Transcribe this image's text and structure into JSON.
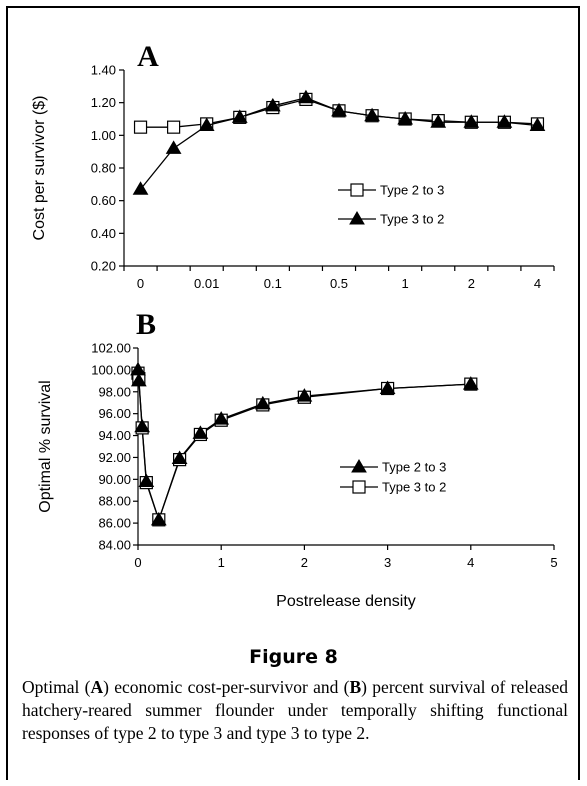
{
  "chart_data": [
    {
      "type": "line",
      "panel_label": "A",
      "ylabel": "Cost per survivor ($)",
      "xlabel": "",
      "ylim": [
        0.2,
        1.4
      ],
      "y_ticks": [
        "0.20",
        "0.40",
        "0.60",
        "0.80",
        "1.00",
        "1.20",
        "1.40"
      ],
      "categories": [
        "0",
        "",
        "0.01",
        "",
        "0.1",
        "",
        "0.5",
        "",
        "1",
        "",
        "2",
        "",
        "4"
      ],
      "series": [
        {
          "name": "Type 2 to 3",
          "marker": "square-open",
          "values": [
            1.05,
            1.05,
            1.07,
            1.11,
            1.17,
            1.22,
            1.15,
            1.12,
            1.1,
            1.09,
            1.08,
            1.08,
            1.07
          ]
        },
        {
          "name": "Type 3 to 2",
          "marker": "triangle-filled",
          "values": [
            0.67,
            0.92,
            1.06,
            1.11,
            1.18,
            1.23,
            1.15,
            1.12,
            1.1,
            1.08,
            1.08,
            1.08,
            1.06
          ]
        }
      ],
      "legend": "center-right"
    },
    {
      "type": "line",
      "panel_label": "B",
      "ylabel": "Optimal % survival",
      "xlabel": "Postrelease density",
      "xlim": [
        0,
        5
      ],
      "x_ticks": [
        "0",
        "1",
        "2",
        "3",
        "4",
        "5"
      ],
      "ylim": [
        84,
        102
      ],
      "y_ticks": [
        "84.00",
        "86.00",
        "88.00",
        "90.00",
        "92.00",
        "94.00",
        "96.00",
        "98.00",
        "100.00",
        "102.00"
      ],
      "series": [
        {
          "name": "Type 2 to 3",
          "marker": "triangle-filled",
          "x": [
            0,
            0.01,
            0.05,
            0.1,
            0.25,
            0.5,
            0.75,
            1,
            1.5,
            2,
            3,
            4
          ],
          "y": [
            100.0,
            99.0,
            94.8,
            89.8,
            86.3,
            91.9,
            94.2,
            95.5,
            96.9,
            97.6,
            98.3,
            98.7
          ]
        },
        {
          "name": "Type 3 to 2",
          "marker": "square-open",
          "x": [
            0,
            0.01,
            0.05,
            0.1,
            0.25,
            0.5,
            0.75,
            1,
            1.5,
            2,
            3,
            4
          ],
          "y": [
            99.7,
            99.2,
            94.7,
            89.7,
            86.3,
            91.8,
            94.1,
            95.4,
            96.8,
            97.5,
            98.3,
            98.7
          ]
        }
      ],
      "legend": "center-right"
    }
  ],
  "figure_label": "Figure 8",
  "caption": {
    "p1": "Optimal (",
    "a": "A",
    "p2": ") economic cost-per-survivor and (",
    "b": "B",
    "p3": ") percent survival of released hatchery-reared summer flounder under temporally shifting functional responses of type 2 to type 3 and type 3 to type 2."
  }
}
